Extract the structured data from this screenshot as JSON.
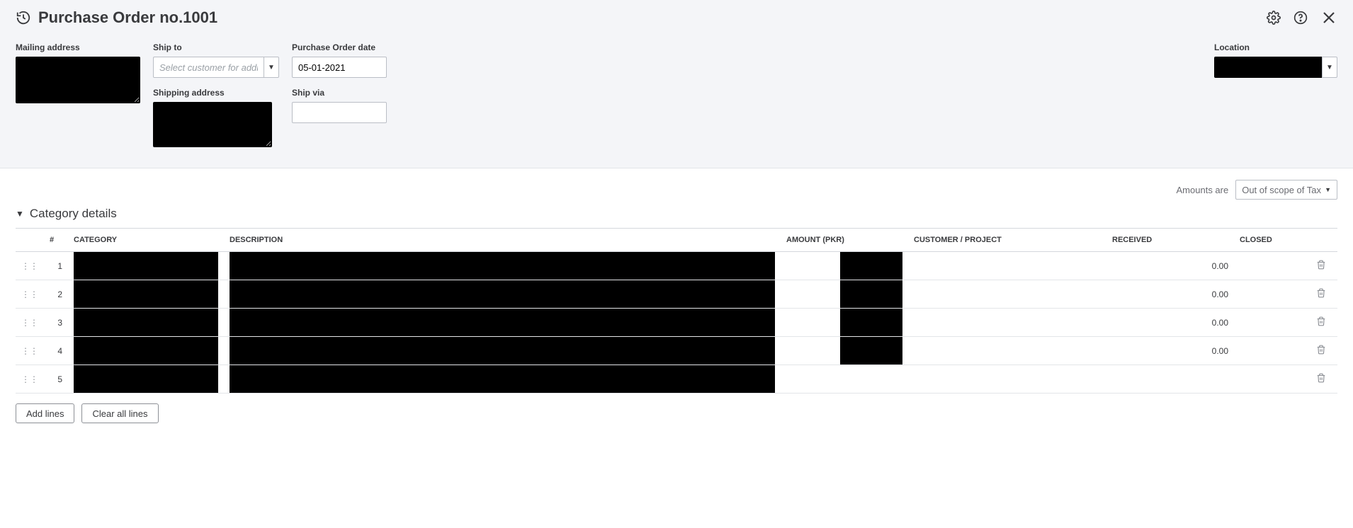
{
  "header": {
    "icon_name": "history-icon",
    "title": "Purchase Order no.1001",
    "gear_icon": "gear-icon",
    "help_icon": "help-icon",
    "close_icon": "close-icon"
  },
  "form": {
    "mailing_address": {
      "label": "Mailing address",
      "value": "█████"
    },
    "ship_to": {
      "label": "Ship to",
      "placeholder": "Select customer for address",
      "value": ""
    },
    "po_date": {
      "label": "Purchase Order date",
      "value": "05-01-2021"
    },
    "shipping_address": {
      "label": "Shipping address",
      "value": "█████"
    },
    "ship_via": {
      "label": "Ship via",
      "value": ""
    },
    "location": {
      "label": "Location",
      "value": "█████"
    }
  },
  "amounts_row": {
    "label": "Amounts are",
    "selected": "Out of scope of Tax"
  },
  "section": {
    "title": "Category details"
  },
  "table": {
    "columns": {
      "num": "#",
      "category": "CATEGORY",
      "description": "DESCRIPTION",
      "amount": "AMOUNT (PKR)",
      "customer": "CUSTOMER / PROJECT",
      "received": "RECEIVED",
      "closed": "CLOSED"
    },
    "rows": [
      {
        "num": "1",
        "category": "█████",
        "description": "█████",
        "amount": "█████",
        "customer": "",
        "received": "0.00",
        "closed": ""
      },
      {
        "num": "2",
        "category": "█████",
        "description": "█████",
        "amount": "█████",
        "customer": "",
        "received": "0.00",
        "closed": ""
      },
      {
        "num": "3",
        "category": "█████",
        "description": "█████",
        "amount": "█████",
        "customer": "",
        "received": "0.00",
        "closed": ""
      },
      {
        "num": "4",
        "category": "█████",
        "description": "█████",
        "amount": "█████",
        "customer": "",
        "received": "0.00",
        "closed": ""
      },
      {
        "num": "5",
        "category": "█████",
        "description": "█████",
        "amount": "",
        "customer": "",
        "received": "",
        "closed": ""
      }
    ]
  },
  "buttons": {
    "add_lines": "Add lines",
    "clear_all": "Clear all lines"
  },
  "colors": {
    "page_bg": "#f4f5f8",
    "border": "#babec5",
    "divider": "#d4d7dc"
  }
}
